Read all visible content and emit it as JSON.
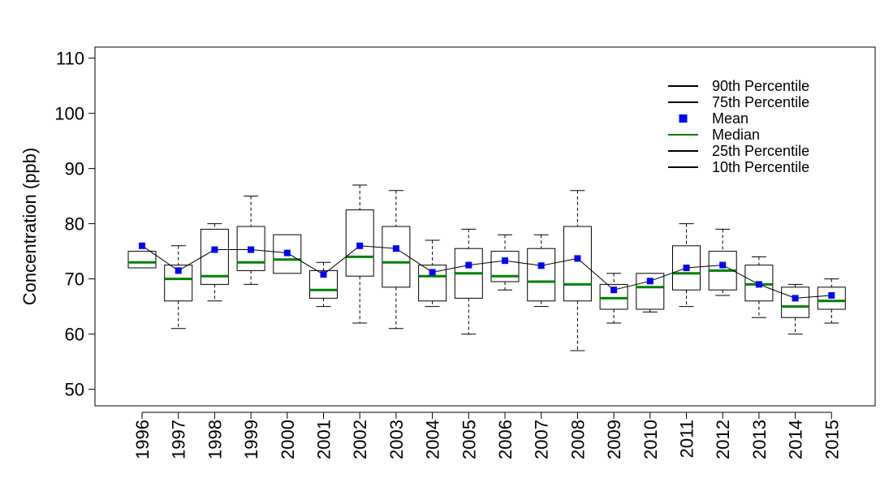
{
  "chart_data": {
    "type": "boxplot",
    "title": "",
    "xlabel": "",
    "ylabel": "Concentration (ppb)",
    "ylim": [
      47,
      112
    ],
    "yticks": [
      50,
      60,
      70,
      80,
      90,
      100,
      110
    ],
    "categories": [
      "1996",
      "1997",
      "1998",
      "1999",
      "2000",
      "2001",
      "2002",
      "2003",
      "2004",
      "2005",
      "2006",
      "2007",
      "2008",
      "2009",
      "2010",
      "2011",
      "2012",
      "2013",
      "2014",
      "2015"
    ],
    "p10": [
      null,
      61,
      66,
      69,
      null,
      65,
      62,
      61,
      65,
      60,
      68,
      65,
      57,
      62,
      64,
      65,
      67,
      63,
      60,
      62
    ],
    "q1": [
      72,
      66,
      69,
      71.5,
      71,
      66.5,
      70.5,
      68.5,
      66,
      66.5,
      69.5,
      66,
      66,
      64.5,
      64.5,
      68,
      68,
      66,
      63,
      64.5
    ],
    "median": [
      73,
      70,
      70.5,
      73,
      73.5,
      68,
      74,
      73,
      70.5,
      71,
      70.5,
      69.5,
      69,
      66.5,
      68.5,
      71,
      71.5,
      69,
      65,
      66
    ],
    "q3": [
      75,
      72.5,
      79,
      79.5,
      78,
      71.5,
      82.5,
      79.5,
      72.5,
      75.5,
      75,
      75.5,
      79.5,
      69,
      71,
      76,
      75,
      72.5,
      68.5,
      68.5
    ],
    "p90": [
      null,
      76,
      80,
      85,
      null,
      73,
      87,
      86,
      77,
      79,
      78,
      78,
      86,
      71,
      null,
      80,
      79,
      74,
      69,
      70
    ],
    "mean": [
      76,
      71.5,
      75.3,
      75.3,
      74.7,
      70.8,
      76.0,
      75.5,
      71.2,
      72.5,
      73.3,
      72.4,
      73.7,
      68.0,
      69.6,
      72.0,
      72.5,
      69.0,
      66.5,
      67.0
    ],
    "legend": {
      "position": "top-right",
      "entries": [
        "90th Percentile",
        "75th Percentile",
        "Mean",
        "Median",
        "25th Percentile",
        "10th Percentile"
      ]
    },
    "colors": {
      "box": "#000000",
      "median": "#008000",
      "mean": "#0000ff",
      "mean_line": "#000000"
    }
  }
}
